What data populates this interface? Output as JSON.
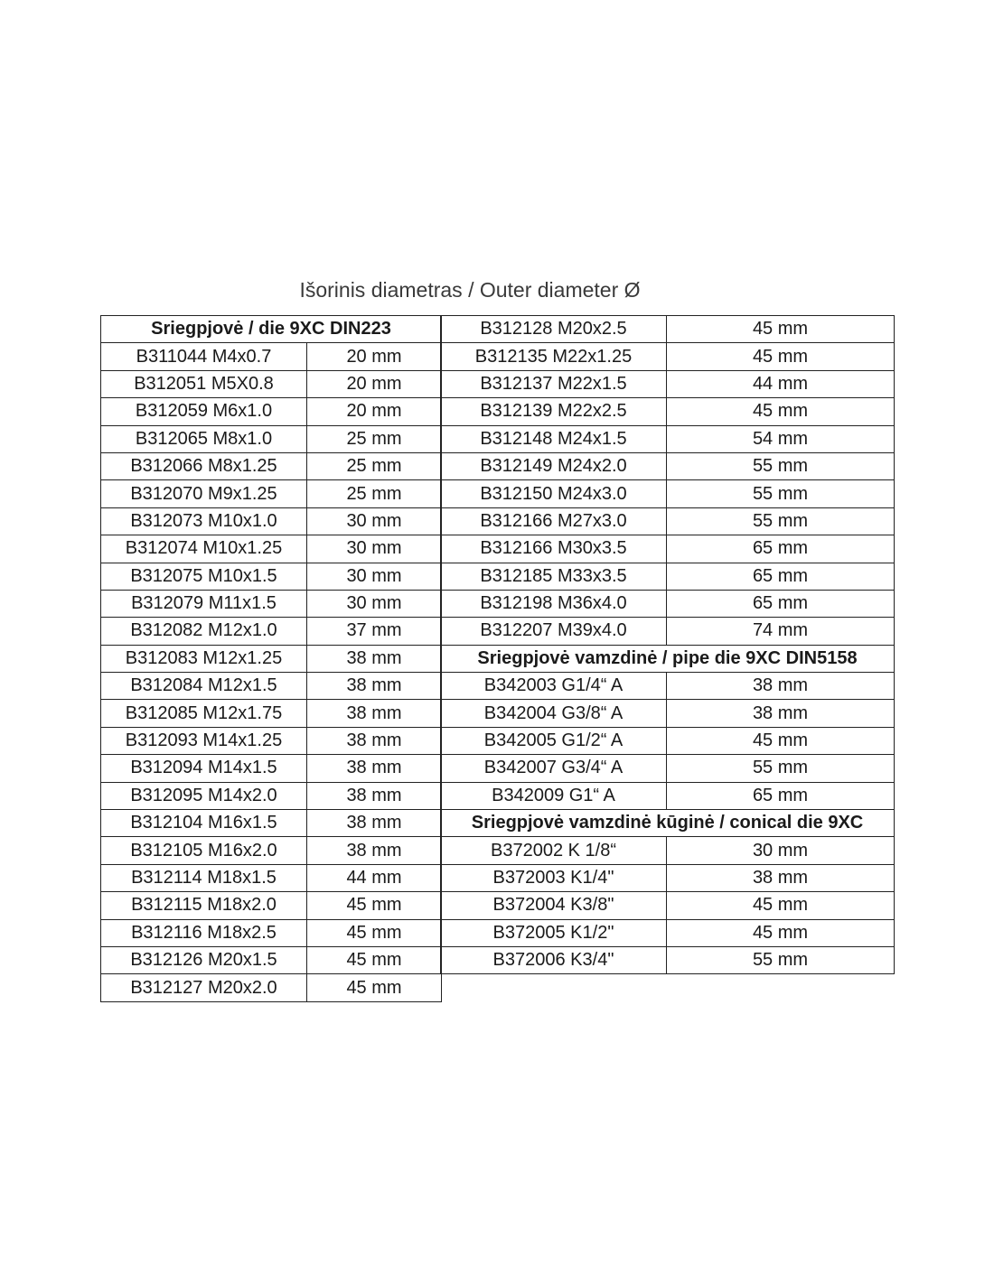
{
  "title": "Išorinis diametras / Outer diameter Ø",
  "left_table": [
    {
      "header": "Sriegpjovė / die 9XC DIN223"
    },
    {
      "code": "B311044 M4x0.7",
      "diameter": "20 mm"
    },
    {
      "code": "B312051 M5X0.8",
      "diameter": "20 mm"
    },
    {
      "code": "B312059 M6x1.0",
      "diameter": "20 mm"
    },
    {
      "code": "B312065 M8x1.0",
      "diameter": "25 mm"
    },
    {
      "code": "B312066 M8x1.25",
      "diameter": "25 mm"
    },
    {
      "code": "B312070 M9x1.25",
      "diameter": "25 mm"
    },
    {
      "code": "B312073 M10x1.0",
      "diameter": "30 mm"
    },
    {
      "code": "B312074 M10x1.25",
      "diameter": "30 mm"
    },
    {
      "code": "B312075 M10x1.5",
      "diameter": "30 mm"
    },
    {
      "code": "B312079 M11x1.5",
      "diameter": "30 mm"
    },
    {
      "code": "B312082 M12x1.0",
      "diameter": "37 mm"
    },
    {
      "code": "B312083 M12x1.25",
      "diameter": "38 mm"
    },
    {
      "code": "B312084 M12x1.5",
      "diameter": "38 mm"
    },
    {
      "code": "B312085 M12x1.75",
      "diameter": "38 mm"
    },
    {
      "code": "B312093 M14x1.25",
      "diameter": "38 mm"
    },
    {
      "code": "B312094 M14x1.5",
      "diameter": "38 mm"
    },
    {
      "code": "B312095 M14x2.0",
      "diameter": "38 mm"
    },
    {
      "code": "B312104 M16x1.5",
      "diameter": "38 mm"
    },
    {
      "code": "B312105 M16x2.0",
      "diameter": "38 mm"
    },
    {
      "code": "B312114 M18x1.5",
      "diameter": "44 mm"
    },
    {
      "code": "B312115 M18x2.0",
      "diameter": "45 mm"
    },
    {
      "code": "B312116 M18x2.5",
      "diameter": "45 mm"
    },
    {
      "code": "B312126 M20x1.5",
      "diameter": "45 mm"
    },
    {
      "code": "B312127 M20x2.0",
      "diameter": "45 mm"
    }
  ],
  "right_table": [
    {
      "code": "B312128 M20x2.5",
      "diameter": "45 mm"
    },
    {
      "code": "B312135 M22x1.25",
      "diameter": "45 mm"
    },
    {
      "code": "B312137 M22x1.5",
      "diameter": "44 mm"
    },
    {
      "code": "B312139 M22x2.5",
      "diameter": "45 mm"
    },
    {
      "code": "B312148 M24x1.5",
      "diameter": "54 mm"
    },
    {
      "code": "B312149 M24x2.0",
      "diameter": "55 mm"
    },
    {
      "code": "B312150 M24x3.0",
      "diameter": "55 mm"
    },
    {
      "code": "B312166 M27x3.0",
      "diameter": "55 mm"
    },
    {
      "code": "B312166 M30x3.5",
      "diameter": "65 mm"
    },
    {
      "code": "B312185 M33x3.5",
      "diameter": "65 mm"
    },
    {
      "code": "B312198 M36x4.0",
      "diameter": "65 mm"
    },
    {
      "code": "B312207 M39x4.0",
      "diameter": "74 mm"
    },
    {
      "header": "Sriegpjovė vamzdinė / pipe die 9XC DIN5158"
    },
    {
      "code": "B342003 G1/4“ A",
      "diameter": "38 mm"
    },
    {
      "code": "B342004 G3/8“ A",
      "diameter": "38 mm"
    },
    {
      "code": "B342005 G1/2“ A",
      "diameter": "45 mm"
    },
    {
      "code": "B342007 G3/4“ A",
      "diameter": "55 mm"
    },
    {
      "code": "B342009 G1“ A",
      "diameter": "65 mm"
    },
    {
      "header": "Sriegpjovė vamzdinė kūginė / conical die 9XC"
    },
    {
      "code": "B372002 K 1/8“",
      "diameter": "30 mm"
    },
    {
      "code": "B372003 K1/4\"",
      "diameter": "38 mm"
    },
    {
      "code": "B372004 K3/8\"",
      "diameter": "45 mm"
    },
    {
      "code": "B372005 K1/2\"",
      "diameter": "45 mm"
    },
    {
      "code": "B372006 K3/4\"",
      "diameter": "55 mm"
    }
  ]
}
